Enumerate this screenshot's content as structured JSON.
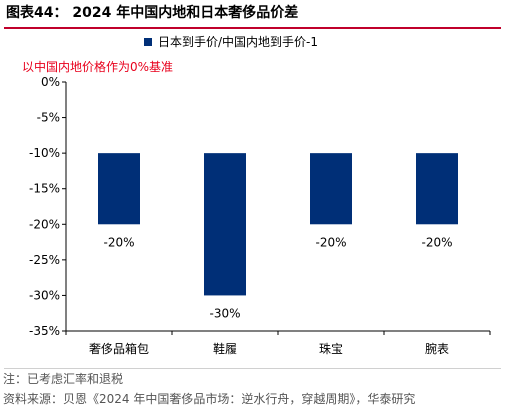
{
  "figure": {
    "title": "图表44：  2024 年中国内地和日本奢侈品价差"
  },
  "chart_data": {
    "type": "bar",
    "categories": [
      "奢侈品箱包",
      "鞋履",
      "珠宝",
      "腕表"
    ],
    "series": [
      {
        "name": "日本到手价/中国内地到手价-1",
        "values": [
          -0.2,
          -0.3,
          -0.2,
          -0.2
        ],
        "labels": [
          "-20%",
          "-30%",
          "-20%",
          "-20%"
        ]
      }
    ],
    "annotation": "以中国内地价格作为0%基准",
    "y_ticks": [
      "0%",
      "-5%",
      "-10%",
      "-15%",
      "-20%",
      "-25%",
      "-30%",
      "-35%"
    ],
    "y_tick_values": [
      0,
      -0.05,
      -0.1,
      -0.15,
      -0.2,
      -0.25,
      -0.3,
      -0.35
    ],
    "ylim": [
      -0.35,
      0
    ],
    "bar_base": -0.1,
    "grid": false,
    "legend_position": "top-right",
    "xlabel": "",
    "ylabel": "",
    "colors": {
      "bar": "#002f77",
      "annotation": "#e8001c",
      "axis": "#000000"
    }
  },
  "footer": {
    "note": "注：已考虑汇率和退税",
    "source": "资料来源：贝恩《2024 年中国奢侈品市场：逆水行舟，穿越周期》，华泰研究"
  }
}
